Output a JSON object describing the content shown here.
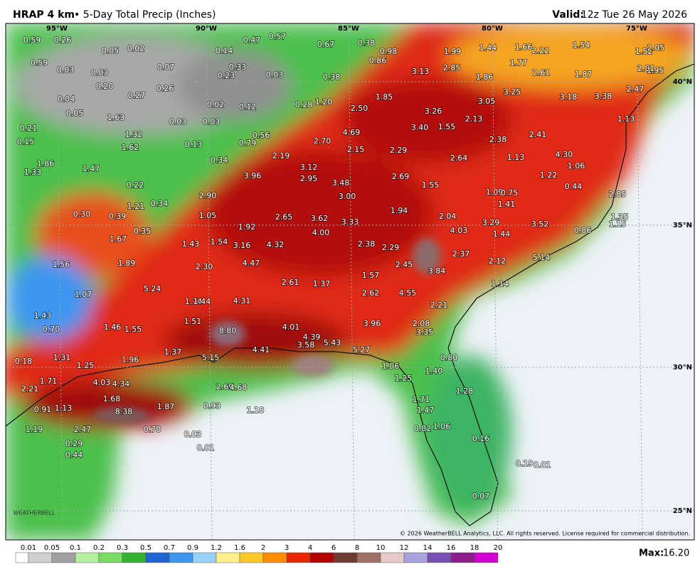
{
  "header": {
    "model": "HRAP 4 km",
    "title": "• 5-Day Total Precip (Inches)",
    "valid_label": "Valid:",
    "valid_time": "12z Tue 26 May 2026"
  },
  "lon_labels": [
    "95°W",
    "90°W",
    "85°W",
    "80°W",
    "75°W"
  ],
  "lat_labels": [
    "40°N",
    "35°N",
    "30°N",
    "25°N"
  ],
  "map_values": [
    "0.59",
    "0.26",
    "0.05",
    "0.02",
    "0.59",
    "0.03",
    "0.03",
    "0.20",
    "0.04",
    "0.27",
    "0.26",
    "0.07",
    "0.14",
    "0.47",
    "0.57",
    "0.33",
    "0.23",
    "0.03",
    "0.67",
    "0.38",
    "0.98",
    "0.86",
    "0.38",
    "1.20",
    "0.28",
    "0.02",
    "0.12",
    "0.05",
    "1.63",
    "0.03",
    "0.03",
    "0.21",
    "0.15",
    "1.32",
    "1.62",
    "0.13",
    "0.79",
    "0.56",
    "2.19",
    "0.34",
    "1.33",
    "1.86",
    "1.47",
    "0.22",
    "2.90",
    "0.34",
    "1.21",
    "0.30",
    "0.39",
    "1.05",
    "0.35",
    "1.67",
    "1.43",
    "1.54",
    "1.92",
    "3.16",
    "4.32",
    "2.65",
    "3.62",
    "4.00",
    "3.33",
    "2.38",
    "2.29",
    "1.94",
    "3.96",
    "2.95",
    "3.12",
    "3.48",
    "3.00",
    "2.69",
    "1.55",
    "2.04",
    "4.03",
    "2.37",
    "3.84",
    "1.44",
    "3.29",
    "3.52",
    "1.09",
    "0.75",
    "1.41",
    "1.22",
    "2.85",
    "4.30",
    "2.41",
    "2.38",
    "1.13",
    "2.64",
    "2.13",
    "1.55",
    "3.40",
    "3.26",
    "3.05",
    "3.25",
    "3.18",
    "3.38",
    "2.47",
    "1.13",
    "1.44",
    "1.66",
    "2.22",
    "1.54",
    "1.77",
    "2.61",
    "1.87",
    "1.86",
    "3.13",
    "2.85",
    "1.99",
    "1.52",
    "2.05",
    "2.81",
    "1.95",
    "1.85",
    "2.50",
    "4.69",
    "2.70",
    "2.15",
    "2.29",
    "1.56",
    "1.89",
    "4.47",
    "2.30",
    "2.61",
    "1.37",
    "1.57",
    "2.45",
    "2.62",
    "4.55",
    "5.24",
    "1.74",
    "1.44",
    "4.31",
    "1.07",
    "1.43",
    "0.70",
    "1.46",
    "1.55",
    "1.51",
    "8.80",
    "4.01",
    "4.39",
    "3.96",
    "2.08",
    "3.35",
    "2.21",
    "3.58",
    "5.43",
    "5.27",
    "4.41",
    "1.37",
    "5.15",
    "1.96",
    "1.31",
    "1.25",
    "0.18",
    "0.80",
    "1.40",
    "1.25",
    "1.06",
    "4.03",
    "4.34",
    "2.69",
    "4.68",
    "1.71",
    "2.21",
    "1.68",
    "1.28",
    "1.71",
    "1.47",
    "8.38",
    "1.87",
    "0.93",
    "1.18",
    "0.91",
    "1.13",
    "1.19",
    "2.47",
    "0.70",
    "0.03",
    "0.01",
    "0.29",
    "0.44",
    "1.06",
    "0.82",
    "0.16",
    "0.19",
    "0.01",
    "0.07",
    "1.15",
    "0.86",
    "1.35",
    "5.14",
    "2.12",
    "1.14",
    "0.44",
    "1.06"
  ],
  "legend": {
    "ticks": [
      "0.01",
      "0.05",
      "0.1",
      "0.2",
      "0.3",
      "0.5",
      "0.7",
      "0.9",
      "1.2",
      "1.6",
      "2",
      "3",
      "4",
      "6",
      "8",
      "10",
      "12",
      "14",
      "16",
      "18",
      "20"
    ],
    "colors": [
      "#ffffff",
      "#d0d0d0",
      "#a0a0a0",
      "#b4f0a0",
      "#78dc64",
      "#32b432",
      "#1e64d2",
      "#3c96f0",
      "#96d2fa",
      "#fff08c",
      "#ffc828",
      "#ff8c00",
      "#e62800",
      "#b40000",
      "#6e3c32",
      "#a07064",
      "#e6c8c8",
      "#aaa0dc",
      "#7850b4",
      "#8c1e8c",
      "#d200d2"
    ]
  },
  "max_label": "Max:",
  "max_value": "16.20",
  "logo": "WEATHERBELL",
  "copyright": "© 2026 WeatherBELL Analytics, LLC. All rights reserved. License required for commercial distribution."
}
